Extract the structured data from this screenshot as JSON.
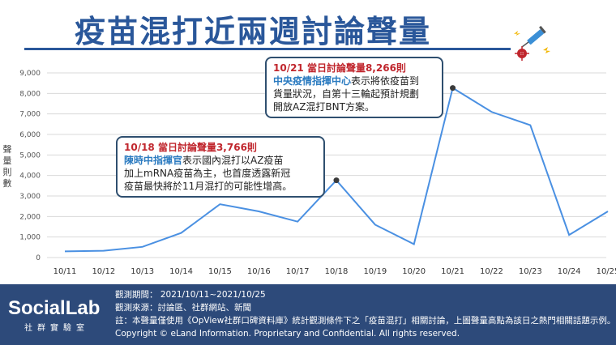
{
  "title": "疫苗混打近兩週討論聲量",
  "chart_data": {
    "type": "line",
    "categories": [
      "10/11",
      "10/12",
      "10/13",
      "10/14",
      "10/15",
      "10/16",
      "10/17",
      "10/18",
      "10/19",
      "10/20",
      "10/21",
      "10/22",
      "10/23",
      "10/24",
      "10/25"
    ],
    "series": [
      {
        "values": [
          300,
          330,
          520,
          1200,
          2600,
          2250,
          1750,
          3766,
          1600,
          650,
          8266,
          7100,
          6450,
          1100,
          2250
        ]
      }
    ],
    "ylabel": "聲量則數",
    "ylim": [
      0,
      9000
    ],
    "yticks": [
      "0",
      "1,000",
      "2,000",
      "3,000",
      "4,000",
      "5,000",
      "6,000",
      "7,000",
      "8,000",
      "9,000"
    ],
    "grid": true,
    "line_color": "#4a90e2",
    "annotations": [
      {
        "category": "10/18",
        "value": 3766,
        "head": "10/18 當日討論聲量3,766則",
        "org": "陳時中指揮官",
        "line1_rest": "表示國內混打以AZ疫苗",
        "line2": "加上mRNA疫苗為主，也首度透露新冠",
        "line3": "疫苗最快將於11月混打的可能性增高。"
      },
      {
        "category": "10/21",
        "value": 8266,
        "head": "10/21 當日討論聲量8,266則",
        "org": "中央疫情指揮中心",
        "line1_rest": "表示將依疫苗到",
        "line2": "貨量狀況，自第十三輪起預計規劃",
        "line3": "開放AZ混打BNT方案。"
      }
    ]
  },
  "footer": {
    "brand": "SocialLab",
    "brand_sub": "社群實驗室",
    "period": "觀測期間： 2021/10/11~2021/10/25",
    "source": "觀測來源：討論區、社群網站、新聞",
    "note": "註：本聲量僅使用《OpView社群口碑資料庫》統計觀測條件下之「疫苗混打」相關討論，上圖聲量高點為該日之熱門相關話題示例。",
    "copyright": "Copyright © eLand Information. Proprietary and Confidential. All rights reserved."
  }
}
